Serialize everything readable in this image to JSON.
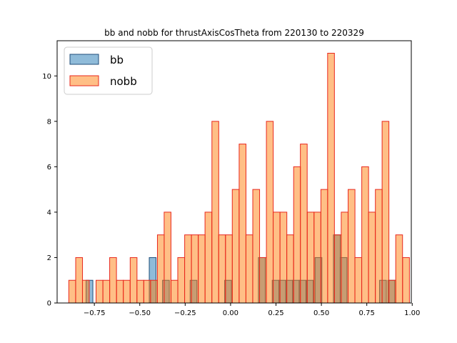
{
  "chart_data": {
    "type": "bar",
    "title": "bb and nobb for thrustAxisCosTheta from 220130 to 220329",
    "xlabel": "",
    "ylabel": "",
    "xlim": [
      -0.955,
      0.995
    ],
    "ylim": [
      0,
      11.55
    ],
    "bin_width": 0.0375,
    "x_ticks": [
      -0.75,
      -0.5,
      -0.25,
      0.0,
      0.25,
      0.5,
      0.75,
      1.0
    ],
    "x_tick_labels": [
      "−0.75",
      "−0.50",
      "−0.25",
      "0.00",
      "0.25",
      "0.50",
      "0.75",
      "1.00"
    ],
    "y_ticks": [
      0,
      2,
      4,
      6,
      8,
      10
    ],
    "y_tick_labels": [
      "0",
      "2",
      "4",
      "6",
      "8",
      "10"
    ],
    "legend_position": "top-left",
    "series": [
      {
        "name": "bb",
        "color": "#1f77b4",
        "edge_color": "#1f4e79",
        "opacity": 0.5,
        "bins": [
          {
            "x": -0.777,
            "value": 1
          },
          {
            "x": -0.429,
            "value": 2
          },
          {
            "x": -0.356,
            "value": 1
          },
          {
            "x": -0.204,
            "value": 1
          },
          {
            "x": -0.014,
            "value": 1
          },
          {
            "x": 0.172,
            "value": 2
          },
          {
            "x": 0.248,
            "value": 1
          },
          {
            "x": 0.285,
            "value": 1
          },
          {
            "x": 0.323,
            "value": 1
          },
          {
            "x": 0.36,
            "value": 1
          },
          {
            "x": 0.396,
            "value": 1
          },
          {
            "x": 0.436,
            "value": 1
          },
          {
            "x": 0.484,
            "value": 2
          },
          {
            "x": 0.585,
            "value": 3
          },
          {
            "x": 0.622,
            "value": 2
          },
          {
            "x": 0.839,
            "value": 1
          },
          {
            "x": 0.885,
            "value": 1
          }
        ]
      },
      {
        "name": "nobb",
        "color": "#ff7f0e",
        "edge_color": "#e8281e",
        "opacity": 0.5,
        "bins": [
          {
            "x": -0.872,
            "value": 1
          },
          {
            "x": -0.834,
            "value": 2
          },
          {
            "x": -0.797,
            "value": 1
          },
          {
            "x": -0.759,
            "value": 0
          },
          {
            "x": -0.722,
            "value": 1
          },
          {
            "x": -0.684,
            "value": 1
          },
          {
            "x": -0.647,
            "value": 2
          },
          {
            "x": -0.609,
            "value": 1
          },
          {
            "x": -0.572,
            "value": 1
          },
          {
            "x": -0.534,
            "value": 2
          },
          {
            "x": -0.497,
            "value": 1
          },
          {
            "x": -0.459,
            "value": 1
          },
          {
            "x": -0.422,
            "value": 1
          },
          {
            "x": -0.384,
            "value": 3
          },
          {
            "x": -0.347,
            "value": 4
          },
          {
            "x": -0.309,
            "value": 1
          },
          {
            "x": -0.272,
            "value": 2
          },
          {
            "x": -0.234,
            "value": 3
          },
          {
            "x": -0.197,
            "value": 3
          },
          {
            "x": -0.159,
            "value": 3
          },
          {
            "x": -0.122,
            "value": 4
          },
          {
            "x": -0.084,
            "value": 8
          },
          {
            "x": -0.047,
            "value": 3
          },
          {
            "x": -0.009,
            "value": 3
          },
          {
            "x": 0.028,
            "value": 5
          },
          {
            "x": 0.066,
            "value": 7
          },
          {
            "x": 0.103,
            "value": 3
          },
          {
            "x": 0.141,
            "value": 5
          },
          {
            "x": 0.178,
            "value": 2
          },
          {
            "x": 0.216,
            "value": 8
          },
          {
            "x": 0.253,
            "value": 4
          },
          {
            "x": 0.291,
            "value": 4
          },
          {
            "x": 0.328,
            "value": 3
          },
          {
            "x": 0.366,
            "value": 6
          },
          {
            "x": 0.403,
            "value": 7
          },
          {
            "x": 0.441,
            "value": 4
          },
          {
            "x": 0.478,
            "value": 4
          },
          {
            "x": 0.516,
            "value": 5
          },
          {
            "x": 0.553,
            "value": 11
          },
          {
            "x": 0.591,
            "value": 3
          },
          {
            "x": 0.628,
            "value": 4
          },
          {
            "x": 0.666,
            "value": 5
          },
          {
            "x": 0.703,
            "value": 2
          },
          {
            "x": 0.741,
            "value": 6
          },
          {
            "x": 0.778,
            "value": 4
          },
          {
            "x": 0.816,
            "value": 5
          },
          {
            "x": 0.853,
            "value": 8
          },
          {
            "x": 0.891,
            "value": 1
          },
          {
            "x": 0.928,
            "value": 3
          },
          {
            "x": 0.966,
            "value": 2
          }
        ]
      }
    ]
  }
}
